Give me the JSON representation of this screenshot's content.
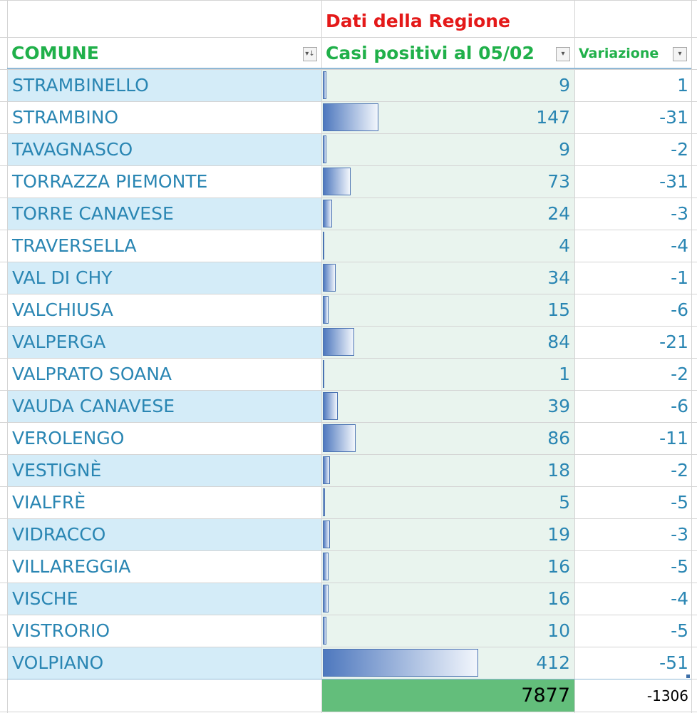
{
  "sheet": {
    "title": "Dati della Regione",
    "headers": {
      "comune": "COMUNE",
      "casi": "Casi positivi al 05/02",
      "variazione": "Variazione"
    },
    "filter_icons": [
      "sort-filter-icon",
      "dropdown-arrow-icon",
      "dropdown-arrow-icon"
    ],
    "rows": [
      {
        "comune": "STRAMBINELLO",
        "casi": "9",
        "variazione": "1"
      },
      {
        "comune": "STRAMBINO",
        "casi": "147",
        "variazione": "-31"
      },
      {
        "comune": "TAVAGNASCO",
        "casi": "9",
        "variazione": "-2"
      },
      {
        "comune": "TORRAZZA PIEMONTE",
        "casi": "73",
        "variazione": "-31"
      },
      {
        "comune": "TORRE CANAVESE",
        "casi": "24",
        "variazione": "-3"
      },
      {
        "comune": "TRAVERSELLA",
        "casi": "4",
        "variazione": "-4"
      },
      {
        "comune": "VAL DI CHY",
        "casi": "34",
        "variazione": "-1"
      },
      {
        "comune": "VALCHIUSA",
        "casi": "15",
        "variazione": "-6"
      },
      {
        "comune": "VALPERGA",
        "casi": "84",
        "variazione": "-21"
      },
      {
        "comune": "VALPRATO SOANA",
        "casi": "1",
        "variazione": "-2"
      },
      {
        "comune": "VAUDA CANAVESE",
        "casi": "39",
        "variazione": "-6"
      },
      {
        "comune": "VEROLENGO",
        "casi": "86",
        "variazione": "-11"
      },
      {
        "comune": "VESTIGNÈ",
        "casi": "18",
        "variazione": "-2"
      },
      {
        "comune": "VIALFRÈ",
        "casi": "5",
        "variazione": "-5"
      },
      {
        "comune": "VIDRACCO",
        "casi": "19",
        "variazione": "-3"
      },
      {
        "comune": "VILLAREGGIA",
        "casi": "16",
        "variazione": "-5"
      },
      {
        "comune": "VISCHE",
        "casi": "16",
        "variazione": "-4"
      },
      {
        "comune": "VISTRORIO",
        "casi": "10",
        "variazione": "-5"
      },
      {
        "comune": "VOLPIANO",
        "casi": "412",
        "variazione": "-51"
      }
    ],
    "totals": {
      "casi": "7877",
      "variazione": "-1306"
    },
    "colors": {
      "title": "#e41919",
      "header": "#20b04a",
      "row_text": "#2a86b3",
      "band_blue": "#d4ecf8",
      "band_green": "#e9f4ee",
      "total_fill": "#63be7b",
      "databar_start": "#4e78be"
    },
    "databar_max": 412
  }
}
